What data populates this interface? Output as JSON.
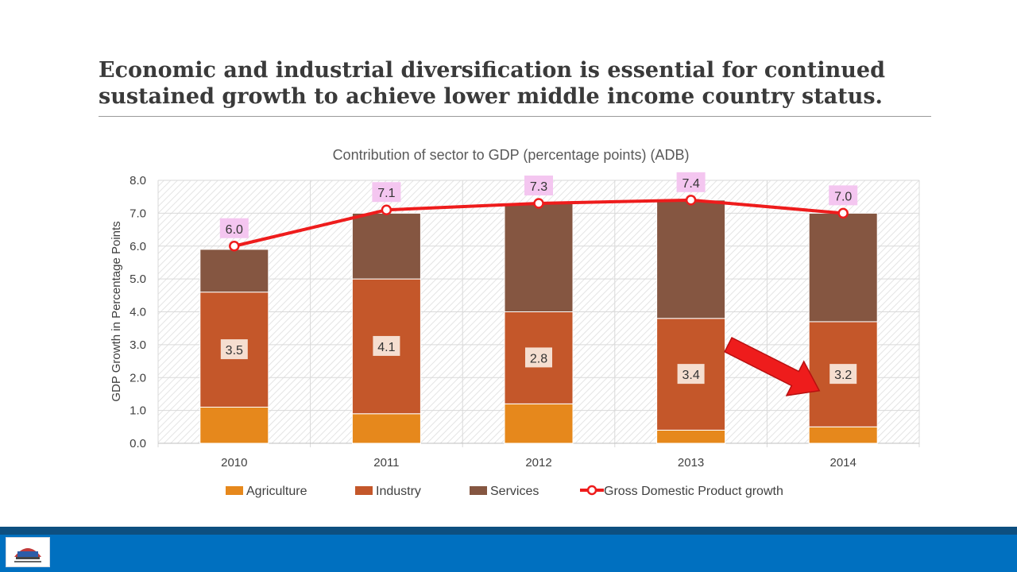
{
  "slide": {
    "title": "Economic and industrial diversification is essential for continued sustained growth to achieve lower middle income country status."
  },
  "footer": {
    "logo_icon": "government-seal-icon"
  },
  "colors": {
    "agriculture": "#e6881c",
    "industry": "#c4572a",
    "services": "#855641",
    "gdp_line": "#ee1c1c",
    "gdp_label_bg": "#f4c6f0",
    "industry_label_bg": "#f5ded0",
    "highlight_arrow": "#ee1c1c",
    "footer": "#0070c0"
  },
  "chart_data": {
    "type": "bar",
    "stacked": true,
    "title": "Contribution of sector to GDP (percentage points) (ADB)",
    "xlabel": "",
    "ylabel": "GDP Growth in Percentage Points",
    "ylim": [
      0,
      8
    ],
    "yticks": [
      "0.0",
      "1.0",
      "2.0",
      "3.0",
      "4.0",
      "5.0",
      "6.0",
      "7.0",
      "8.0"
    ],
    "categories": [
      "2010",
      "2011",
      "2012",
      "2013",
      "2014"
    ],
    "grid": true,
    "legend_position": "bottom",
    "series": [
      {
        "name": "Agriculture",
        "type": "bar",
        "values": [
          1.1,
          0.9,
          1.2,
          0.4,
          0.5
        ]
      },
      {
        "name": "Industry",
        "type": "bar",
        "values": [
          3.5,
          4.1,
          2.8,
          3.4,
          3.2
        ],
        "data_labels": [
          "3.5",
          "4.1",
          "2.8",
          "3.4",
          "3.2"
        ]
      },
      {
        "name": "Services",
        "type": "bar",
        "values": [
          1.3,
          2.0,
          3.3,
          3.6,
          3.3
        ]
      },
      {
        "name": "Gross Domestic Product growth",
        "type": "line",
        "values": [
          6.0,
          7.1,
          7.3,
          7.4,
          7.0
        ],
        "data_labels": [
          "6.0",
          "7.1",
          "7.3",
          "7.4",
          "7.0"
        ]
      }
    ],
    "annotation": {
      "type": "arrow",
      "icon": "down-right-arrow-icon",
      "from_category": "2013",
      "to_category": "2014"
    }
  }
}
